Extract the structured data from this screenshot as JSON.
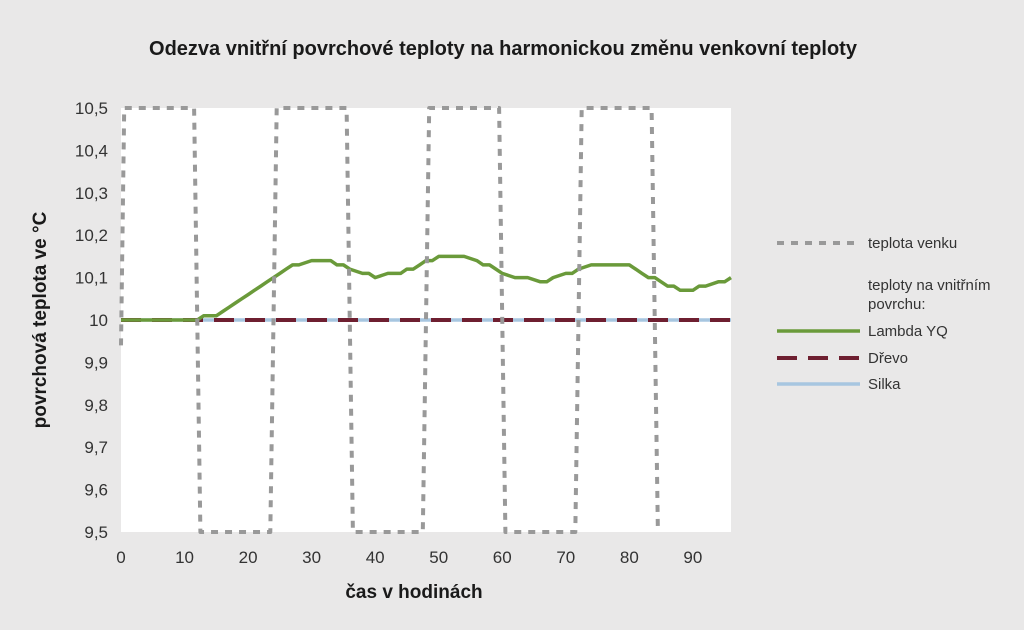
{
  "chart_data": {
    "type": "line",
    "title": "Odezva vnitřní povrchové teploty na harmonickou změnu venkovní teploty",
    "xlabel": "čas v hodinách",
    "ylabel": "povrchová teplota ve °C",
    "xlim": [
      0,
      96
    ],
    "ylim": [
      9.5,
      10.5
    ],
    "x_ticks": [
      0,
      10,
      20,
      30,
      40,
      50,
      60,
      70,
      80,
      90
    ],
    "x_tick_labels": [
      "0",
      "10",
      "20",
      "30",
      "40",
      "50",
      "60",
      "70",
      "80",
      "90"
    ],
    "y_ticks": [
      9.5,
      9.6,
      9.7,
      9.8,
      9.9,
      10.0,
      10.1,
      10.2,
      10.3,
      10.4,
      10.5
    ],
    "y_tick_labels": [
      "9,5",
      "9,6",
      "9,7",
      "9,8",
      "9,9",
      "10",
      "10,1",
      "10,2",
      "10,3",
      "10,4",
      "10,5"
    ],
    "grid": false,
    "legend_position": "right",
    "legend_subheading": "teploty na vnitřním povrchu:",
    "series": [
      {
        "name": "teplota venku",
        "color": "#999999",
        "style": "dotted",
        "x": [
          0,
          0.5,
          11.5,
          12.5,
          23.5,
          24.5,
          35.5,
          36.5,
          47.5,
          48.5,
          59.5,
          60.5,
          71.5,
          72.5,
          83.5,
          84.5
        ],
        "y": [
          9.94,
          10.5,
          10.5,
          9.5,
          9.5,
          10.5,
          10.5,
          9.5,
          9.5,
          10.5,
          10.5,
          9.5,
          9.5,
          10.5,
          10.5,
          9.5
        ]
      },
      {
        "name": "Lambda YQ",
        "color": "#6a9a3a",
        "style": "solid",
        "x": [
          0,
          12,
          13,
          15,
          16,
          17,
          18,
          19,
          20,
          21,
          22,
          23,
          24,
          25,
          26,
          27,
          28,
          30,
          33,
          34,
          35,
          36,
          38,
          39,
          40,
          42,
          44,
          45,
          46,
          47,
          48,
          49,
          50,
          54,
          56,
          57,
          58,
          59,
          60,
          62,
          64,
          66,
          67,
          68,
          70,
          71,
          72,
          74,
          76,
          78,
          80,
          81,
          82,
          83,
          84,
          85,
          86,
          87,
          88,
          90,
          91,
          92,
          94,
          95,
          96
        ],
        "y": [
          10.0,
          10.0,
          10.01,
          10.01,
          10.02,
          10.03,
          10.04,
          10.05,
          10.06,
          10.07,
          10.08,
          10.09,
          10.1,
          10.11,
          10.12,
          10.13,
          10.13,
          10.14,
          10.14,
          10.13,
          10.13,
          10.12,
          10.11,
          10.11,
          10.1,
          10.11,
          10.11,
          10.12,
          10.12,
          10.13,
          10.14,
          10.14,
          10.15,
          10.15,
          10.14,
          10.13,
          10.13,
          10.12,
          10.11,
          10.1,
          10.1,
          10.09,
          10.09,
          10.1,
          10.11,
          10.11,
          10.12,
          10.13,
          10.13,
          10.13,
          10.13,
          10.12,
          10.11,
          10.1,
          10.1,
          10.09,
          10.08,
          10.08,
          10.07,
          10.07,
          10.08,
          10.08,
          10.09,
          10.09,
          10.1
        ]
      },
      {
        "name": "Dřevo",
        "color": "#6e1f30",
        "style": "dashed",
        "x": [
          0,
          96
        ],
        "y": [
          10.0,
          10.0
        ]
      },
      {
        "name": "Silka",
        "color": "#a7c6e0",
        "style": "solid",
        "x": [
          0,
          96
        ],
        "y": [
          10.0,
          10.0
        ]
      }
    ]
  }
}
